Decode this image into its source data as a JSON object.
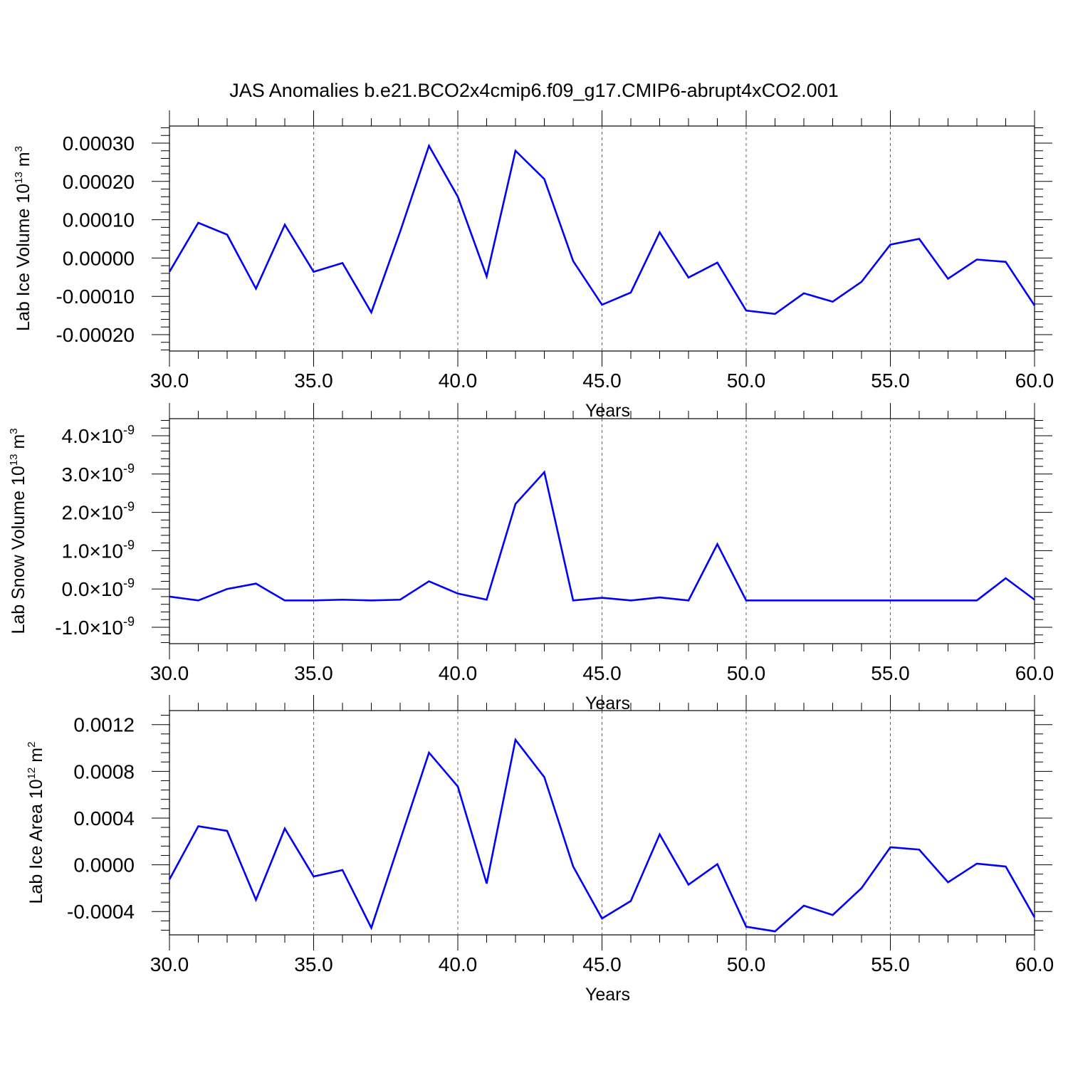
{
  "title": "JAS Anomalies b.e21.BCO2x4cmip6.f09_g17.CMIP6-abrupt4xCO2.001",
  "line_color": "#0000ff",
  "chart_data": [
    {
      "type": "line",
      "ylabel": "Lab Ice Volume 10",
      "ylabel_sup": "13",
      "ylabel_unit": "m",
      "ylabel_unit_sup": "3",
      "xlabel": "Years",
      "xlim": [
        30,
        60
      ],
      "ylim": [
        -0.0002,
        0.0003
      ],
      "grid_x": true,
      "x_ticks": [
        30,
        35,
        40,
        45,
        50,
        55,
        60
      ],
      "x_tick_labels": [
        "30.0",
        "35.0",
        "40.0",
        "45.0",
        "50.0",
        "55.0",
        "60.0"
      ],
      "y_ticks": [
        -0.0002,
        -0.0001,
        0.0,
        0.0001,
        0.0002,
        0.0003
      ],
      "y_tick_labels": [
        "-0.00020",
        "-0.00010",
        "0.00000",
        "0.00010",
        "0.00020",
        "0.00030"
      ],
      "x": [
        30,
        31,
        32,
        33,
        34,
        35,
        36,
        37,
        38,
        39,
        40,
        41,
        42,
        43,
        44,
        45,
        46,
        47,
        48,
        49,
        50,
        51,
        52,
        53,
        54,
        55,
        56,
        57,
        58,
        59,
        60
      ],
      "series": [
        {
          "values": [
            -3.6e-05,
            9.2e-05,
            6.1e-05,
            -8e-05,
            8.7e-05,
            -3.6e-05,
            -1.3e-05,
            -0.000142,
            6.9e-05,
            0.000293,
            0.00016,
            -4.8e-05,
            0.00028,
            0.000206,
            -8e-06,
            -0.000122,
            -9e-05,
            6.7e-05,
            -5.1e-05,
            -1.2e-05,
            -0.000137,
            -0.000146,
            -9.2e-05,
            -0.000114,
            -6.2e-05,
            3.5e-05,
            5e-05,
            -5.4e-05,
            -4e-06,
            -1e-05,
            -0.000124
          ]
        }
      ]
    },
    {
      "type": "line",
      "ylabel": "Lab Snow Volume 10",
      "ylabel_sup": "13",
      "ylabel_unit": "m",
      "ylabel_unit_sup": "3",
      "xlabel": "Years",
      "xlim": [
        30,
        60
      ],
      "ylim": [
        -1e-09,
        4e-09
      ],
      "grid_x": true,
      "x_ticks": [
        30,
        35,
        40,
        45,
        50,
        55,
        60
      ],
      "x_tick_labels": [
        "30.0",
        "35.0",
        "40.0",
        "45.0",
        "50.0",
        "55.0",
        "60.0"
      ],
      "y_ticks": [
        -1e-09,
        0.0,
        1e-09,
        2e-09,
        3e-09,
        4e-09
      ],
      "y_tick_labels": [
        "-1.0",
        "0.0",
        "1.0",
        "2.0",
        "3.0",
        "4.0"
      ],
      "y_tick_multiplier": "×10",
      "y_tick_exponent": "-9",
      "x": [
        30,
        31,
        32,
        33,
        34,
        35,
        36,
        37,
        38,
        39,
        40,
        41,
        42,
        43,
        44,
        45,
        46,
        47,
        48,
        49,
        50,
        51,
        52,
        53,
        54,
        55,
        56,
        57,
        58,
        59,
        60
      ],
      "series": [
        {
          "values": [
            -2e-10,
            -3e-10,
            0.0,
            1.4e-10,
            -3e-10,
            -3e-10,
            -2.8e-10,
            -3e-10,
            -2.8e-10,
            2e-10,
            -1.2e-10,
            -2.8e-10,
            2.22e-09,
            3.05e-09,
            -3e-10,
            -2.3e-10,
            -3e-10,
            -2.2e-10,
            -3e-10,
            1.17e-09,
            -3e-10,
            -3e-10,
            -3e-10,
            -3e-10,
            -3e-10,
            -3e-10,
            -3e-10,
            -3e-10,
            -3e-10,
            2.8e-10,
            -2.8e-10
          ]
        }
      ]
    },
    {
      "type": "line",
      "ylabel": "Lab Ice Area 10",
      "ylabel_sup": "12",
      "ylabel_unit": "m",
      "ylabel_unit_sup": "2",
      "xlabel": "Years",
      "xlim": [
        30,
        60
      ],
      "ylim": [
        -0.0006,
        0.00132
      ],
      "grid_x": true,
      "x_ticks": [
        30,
        35,
        40,
        45,
        50,
        55,
        60
      ],
      "x_tick_labels": [
        "30.0",
        "35.0",
        "40.0",
        "45.0",
        "50.0",
        "55.0",
        "60.0"
      ],
      "y_ticks": [
        -0.0004,
        0.0,
        0.0004,
        0.0008,
        0.0012
      ],
      "y_tick_labels": [
        "-0.0004",
        "0.0000",
        "0.0004",
        "0.0008",
        "0.0012"
      ],
      "x": [
        30,
        31,
        32,
        33,
        34,
        35,
        36,
        37,
        38,
        39,
        40,
        41,
        42,
        43,
        44,
        45,
        46,
        47,
        48,
        49,
        50,
        51,
        52,
        53,
        54,
        55,
        56,
        57,
        58,
        59,
        60
      ],
      "series": [
        {
          "values": [
            -0.000125,
            0.00033,
            0.00029,
            -0.0003,
            0.00031,
            -0.0001,
            -4.5e-05,
            -0.00054,
            0.00021,
            0.00096,
            0.00067,
            -0.00016,
            0.00107,
            0.00075,
            -1.5e-05,
            -0.00046,
            -0.00031,
            0.00026,
            -0.00017,
            5e-06,
            -0.00053,
            -0.00057,
            -0.00035,
            -0.00043,
            -0.0002,
            0.00015,
            0.00013,
            -0.00015,
            1e-05,
            -1.5e-05,
            -0.00045
          ]
        }
      ]
    }
  ]
}
